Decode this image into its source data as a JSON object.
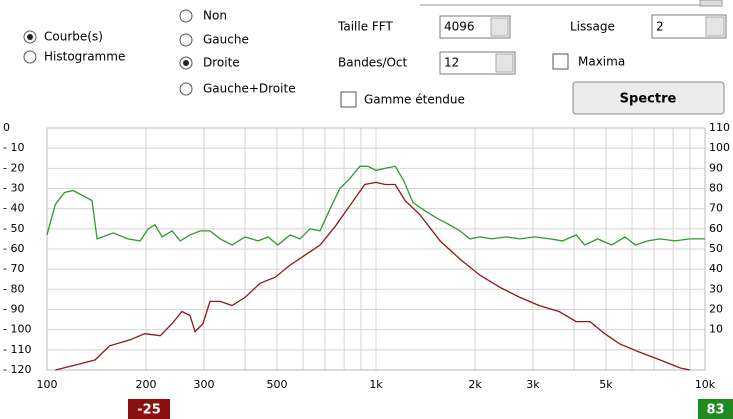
{
  "controls": {
    "display_mode": {
      "options": [
        "Courbe(s)",
        "Histogramme"
      ],
      "selected": 0
    },
    "channel": {
      "options": [
        "Non",
        "Gauche",
        "Droite",
        "Gauche+Droite"
      ],
      "selected": 2
    },
    "fft_size": {
      "label": "Taille FFT",
      "value": "4096"
    },
    "bands": {
      "label": "Bandes/Oct",
      "value": "12"
    },
    "extended_range": {
      "label": "Gamme étendue",
      "checked": false
    },
    "smoothing": {
      "label": "Lissage",
      "value": "2"
    },
    "maxima": {
      "label": "Maxima",
      "checked": false
    },
    "button": {
      "label": "Spectre"
    }
  },
  "chart_data": {
    "type": "line",
    "xscale": "log",
    "xlim": [
      100,
      10000
    ],
    "xticks": [
      100,
      200,
      300,
      500,
      {
        "value": 1000,
        "label": "1k"
      },
      {
        "value": 2000,
        "label": "2k"
      },
      {
        "value": 3000,
        "label": "3k"
      },
      {
        "value": 5000,
        "label": "5k"
      },
      {
        "value": 10000,
        "label": "10k"
      }
    ],
    "x_minor_ticks": [
      400,
      600,
      700,
      800,
      900,
      4000,
      6000,
      7000,
      8000,
      9000
    ],
    "ylim": [
      -120,
      0
    ],
    "yticks": [
      0,
      {
        "value": -10,
        "label": "- 10"
      },
      {
        "value": -20,
        "label": "- 20"
      },
      {
        "value": -30,
        "label": "- 30"
      },
      {
        "value": -40,
        "label": "- 40"
      },
      {
        "value": -50,
        "label": "- 50"
      },
      {
        "value": -60,
        "label": "- 60"
      },
      {
        "value": -70,
        "label": "- 70"
      },
      {
        "value": -80,
        "label": "- 80"
      },
      {
        "value": -90,
        "label": "- 90"
      },
      {
        "value": -100,
        "label": "- 100"
      },
      {
        "value": -110,
        "label": "- 110"
      },
      {
        "value": -120,
        "label": "- 120"
      }
    ],
    "y2lim": [
      -10,
      110
    ],
    "y2ticks": [
      110,
      100,
      90,
      80,
      70,
      60,
      50,
      40,
      30,
      20,
      10
    ],
    "grid": true,
    "series": [
      {
        "color": "#2f9a2f",
        "x": [
          100,
          106,
          113,
          120,
          130,
          137,
          142,
          159,
          176,
          192,
          203,
          213,
          224,
          240,
          254,
          272,
          292,
          313,
          336,
          365,
          400,
          438,
          470,
          503,
          548,
          588,
          630,
          676,
          725,
          777,
          833,
          893,
          945,
          1000,
          1067,
          1144,
          1213,
          1296,
          1407,
          1543,
          1674,
          1800,
          1930,
          2070,
          2250,
          2480,
          2740,
          3030,
          3380,
          3690,
          4060,
          4310,
          4720,
          5200,
          5710,
          6150,
          6690,
          7300,
          8100,
          9000,
          10000
        ],
        "values": [
          -53,
          -38,
          -32,
          -31,
          -34,
          -36,
          -55,
          -52,
          -55,
          -56,
          -50,
          -48,
          -54,
          -51,
          -56,
          -53,
          -51,
          -51,
          -55,
          -58,
          -54,
          -56,
          -54,
          -58,
          -53,
          -55,
          -50,
          -51,
          -40,
          -30,
          -25,
          -19,
          -19,
          -21,
          -20,
          -19,
          -26,
          -37,
          -41,
          -45,
          -48,
          -51,
          -55,
          -54,
          -55,
          -54,
          -55,
          -54,
          -55,
          -56,
          -53,
          -58,
          -55,
          -58,
          -54,
          -58,
          -56,
          -55,
          -56,
          -55,
          -55
        ]
      },
      {
        "color": "#8b1a1a",
        "x": [
          106,
          126,
          140,
          155,
          179,
          198,
          221,
          240,
          257,
          272,
          282,
          298,
          313,
          336,
          365,
          400,
          444,
          494,
          548,
          609,
          676,
          750,
          804,
          862,
          924,
          1000,
          1067,
          1144,
          1226,
          1360,
          1566,
          1800,
          2070,
          2380,
          2740,
          3130,
          3600,
          4060,
          4470,
          4960,
          5500,
          6290,
          7300,
          8420,
          9000
        ],
        "values": [
          -120,
          -117,
          -115,
          -108,
          -105,
          -102,
          -103,
          -97,
          -91,
          -93,
          -101,
          -97,
          -86,
          -86,
          -88,
          -84,
          -77,
          -74,
          -68,
          -63,
          -58,
          -49,
          -42,
          -35,
          -28,
          -27,
          -28,
          -28,
          -36,
          -43,
          -56,
          -65,
          -73,
          -79,
          -84,
          -88,
          -91,
          -96,
          -96,
          -102,
          -107,
          -111,
          -115,
          -119,
          -120
        ]
      }
    ]
  },
  "indicators": [
    {
      "value": -25,
      "color": "#8b1010"
    },
    {
      "value": 83,
      "color": "#1f8a1f"
    }
  ]
}
